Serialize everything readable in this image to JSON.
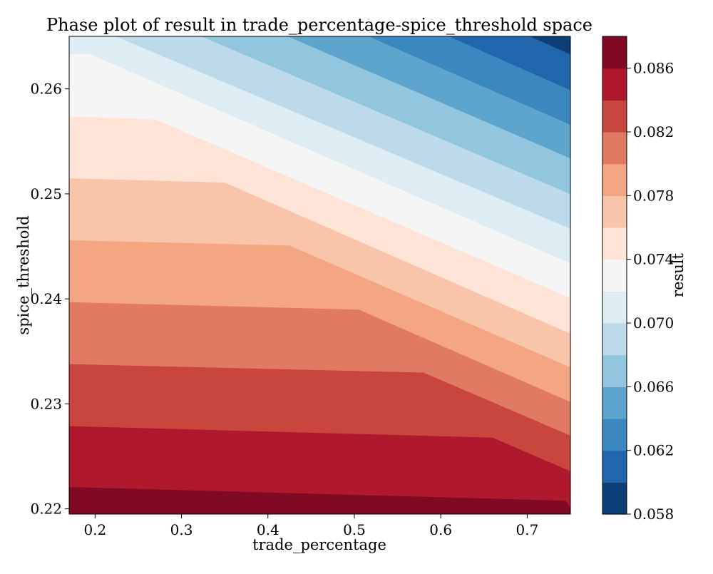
{
  "chart_data": {
    "type": "contourf",
    "title": "Phase plot of result in trade_percentage-spice_threshold space",
    "xlabel": "trade_percentage",
    "ylabel": "spice_threshold",
    "xlim": [
      0.17,
      0.75
    ],
    "ylim": [
      0.2195,
      0.265
    ],
    "xticks": [
      0.2,
      0.3,
      0.4,
      0.5,
      0.6,
      0.7
    ],
    "yticks": [
      0.22,
      0.23,
      0.24,
      0.25,
      0.26
    ],
    "colorbar": {
      "label": "result",
      "levels": [
        0.058,
        0.06,
        0.062,
        0.064,
        0.066,
        0.068,
        0.07,
        0.072,
        0.074,
        0.076,
        0.078,
        0.08,
        0.082,
        0.084,
        0.086,
        0.088
      ],
      "ticks": [
        0.058,
        0.062,
        0.066,
        0.07,
        0.074,
        0.078,
        0.082,
        0.086
      ],
      "colors": [
        "#0c3e77",
        "#2166ac",
        "#3b88c0",
        "#5ea5cd",
        "#92c5de",
        "#bcdaea",
        "#deecf4",
        "#f5f5f5",
        "#fde4d6",
        "#f8c5ab",
        "#f4a582",
        "#e07a62",
        "#c9463f",
        "#b0182d",
        "#800a23"
      ]
    },
    "contour_boundaries": [
      {
        "name": "0.086",
        "points": [
          [
            0.17,
            0.2221
          ],
          [
            0.745,
            0.2208
          ],
          [
            0.75,
            0.2201
          ]
        ]
      },
      {
        "name": "0.084",
        "points": [
          [
            0.17,
            0.2279
          ],
          [
            0.66,
            0.2268
          ],
          [
            0.75,
            0.2236
          ]
        ]
      },
      {
        "name": "0.082",
        "points": [
          [
            0.17,
            0.2338
          ],
          [
            0.58,
            0.233
          ],
          [
            0.75,
            0.227
          ]
        ]
      },
      {
        "name": "0.080",
        "points": [
          [
            0.17,
            0.2397
          ],
          [
            0.505,
            0.239
          ],
          [
            0.75,
            0.2302
          ]
        ]
      },
      {
        "name": "0.078",
        "points": [
          [
            0.17,
            0.2456
          ],
          [
            0.425,
            0.2451
          ],
          [
            0.75,
            0.2335
          ]
        ]
      },
      {
        "name": "0.076",
        "points": [
          [
            0.17,
            0.2515
          ],
          [
            0.35,
            0.2511
          ],
          [
            0.75,
            0.2367
          ]
        ]
      },
      {
        "name": "0.074",
        "points": [
          [
            0.17,
            0.2574
          ],
          [
            0.27,
            0.2571
          ],
          [
            0.75,
            0.2401
          ]
        ]
      },
      {
        "name": "0.072",
        "points": [
          [
            0.17,
            0.2633
          ],
          [
            0.195,
            0.2633
          ],
          [
            0.75,
            0.2434
          ]
        ]
      },
      {
        "name": "0.070",
        "points": [
          [
            0.17,
            0.2669
          ],
          [
            0.75,
            0.2467
          ]
        ]
      },
      {
        "name": "0.068",
        "points": [
          [
            0.17,
            0.2704
          ],
          [
            0.75,
            0.25
          ]
        ]
      },
      {
        "name": "0.066",
        "points": [
          [
            0.17,
            0.274
          ],
          [
            0.75,
            0.2534
          ]
        ]
      },
      {
        "name": "0.064",
        "points": [
          [
            0.17,
            0.2775
          ],
          [
            0.75,
            0.2566
          ]
        ]
      },
      {
        "name": "0.062",
        "points": [
          [
            0.17,
            0.281
          ],
          [
            0.75,
            0.2599
          ]
        ]
      },
      {
        "name": "0.060",
        "points": [
          [
            0.17,
            0.2846
          ],
          [
            0.75,
            0.2633
          ]
        ]
      }
    ]
  }
}
